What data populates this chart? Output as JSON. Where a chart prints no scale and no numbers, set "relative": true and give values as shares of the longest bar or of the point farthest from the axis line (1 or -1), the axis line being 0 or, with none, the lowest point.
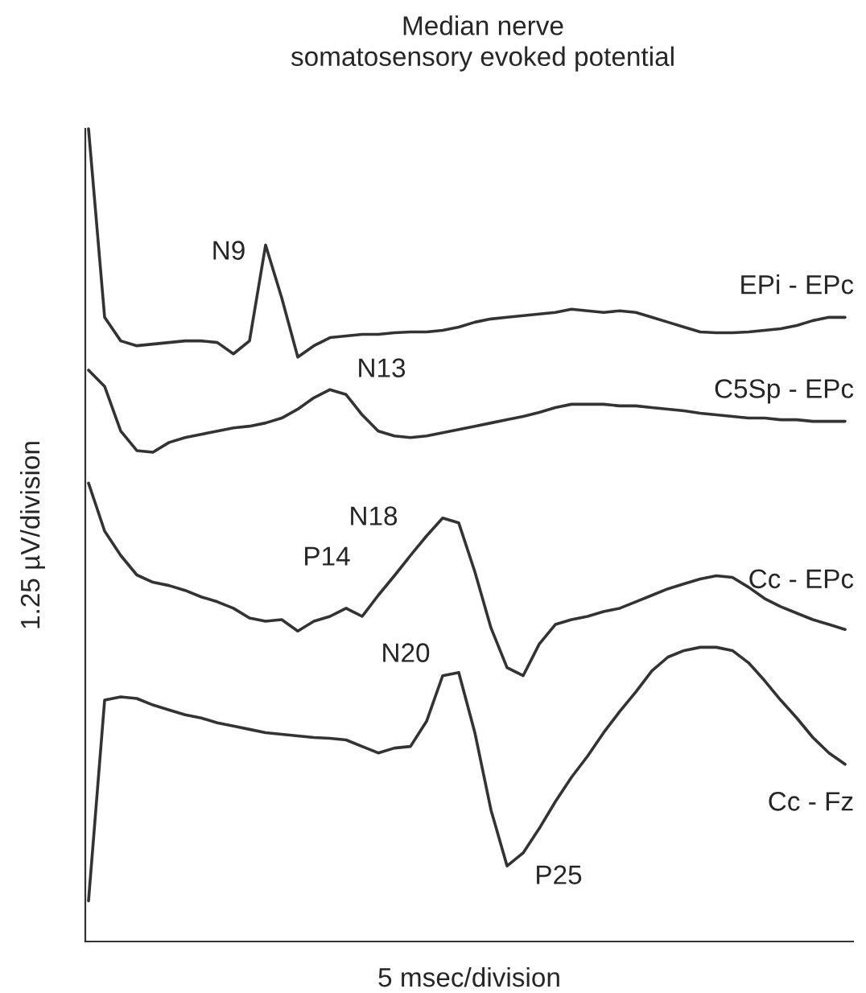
{
  "chart_data": {
    "type": "line",
    "title": "Median nerve\nsomatosensory evoked potential",
    "xlabel": "5 msec/division",
    "ylabel": "1.25 µV/division",
    "relative": true,
    "categories": [
      null,
      null,
      null,
      null,
      null,
      null,
      null,
      null,
      null,
      null,
      null,
      null,
      null,
      null,
      null,
      null,
      null,
      null,
      null,
      null,
      null,
      null,
      null,
      null,
      null,
      null,
      null,
      null,
      null,
      null,
      null,
      null,
      null,
      null,
      null,
      null,
      null,
      null,
      null,
      null,
      null,
      null,
      null,
      null,
      null,
      null,
      null,
      null
    ],
    "annotations": [
      "N9",
      "N13",
      "N18",
      "P14",
      "N20",
      "P25"
    ],
    "series": [
      {
        "name": "EPi - EPc",
        "color": "#333333",
        "values": [
          1.0,
          0.768,
          0.739,
          0.733,
          0.735,
          0.737,
          0.739,
          0.739,
          0.737,
          0.723,
          0.739,
          0.857,
          0.792,
          0.719,
          0.733,
          0.743,
          0.745,
          0.747,
          0.747,
          0.749,
          0.75,
          0.75,
          0.752,
          0.756,
          0.762,
          0.766,
          0.768,
          0.77,
          0.772,
          0.774,
          0.778,
          0.776,
          0.774,
          0.776,
          0.774,
          0.768,
          0.762,
          0.756,
          0.75,
          0.749,
          0.749,
          0.75,
          0.752,
          0.754,
          0.758,
          0.764,
          0.768,
          0.768
        ]
      },
      {
        "name": "C5Sp - EPc",
        "color": "#333333",
        "values": [
          0.703,
          0.683,
          0.628,
          0.604,
          0.602,
          0.614,
          0.62,
          0.624,
          0.628,
          0.632,
          0.634,
          0.638,
          0.644,
          0.655,
          0.669,
          0.679,
          0.673,
          0.648,
          0.628,
          0.622,
          0.62,
          0.622,
          0.626,
          0.63,
          0.634,
          0.638,
          0.642,
          0.646,
          0.651,
          0.657,
          0.661,
          0.661,
          0.661,
          0.659,
          0.659,
          0.657,
          0.655,
          0.653,
          0.65,
          0.648,
          0.646,
          0.644,
          0.644,
          0.642,
          0.642,
          0.64,
          0.64,
          0.64
        ]
      },
      {
        "name": "Cc - EPc",
        "color": "#333333",
        "values": [
          0.564,
          0.505,
          0.475,
          0.451,
          0.442,
          0.438,
          0.432,
          0.424,
          0.418,
          0.41,
          0.398,
          0.394,
          0.396,
          0.382,
          0.394,
          0.4,
          0.41,
          0.4,
          0.426,
          0.45,
          0.475,
          0.499,
          0.521,
          0.515,
          0.455,
          0.386,
          0.337,
          0.327,
          0.366,
          0.39,
          0.396,
          0.4,
          0.406,
          0.41,
          0.418,
          0.426,
          0.434,
          0.44,
          0.446,
          0.45,
          0.448,
          0.436,
          0.422,
          0.412,
          0.404,
          0.396,
          0.39,
          0.384
        ]
      },
      {
        "name": "Cc - Fz",
        "color": "#333333",
        "values": [
          0.05,
          0.297,
          0.301,
          0.299,
          0.291,
          0.285,
          0.279,
          0.275,
          0.269,
          0.265,
          0.261,
          0.257,
          0.255,
          0.253,
          0.251,
          0.25,
          0.248,
          0.24,
          0.232,
          0.238,
          0.24,
          0.271,
          0.327,
          0.331,
          0.257,
          0.162,
          0.093,
          0.109,
          0.139,
          0.172,
          0.202,
          0.228,
          0.257,
          0.283,
          0.307,
          0.333,
          0.35,
          0.358,
          0.362,
          0.362,
          0.358,
          0.343,
          0.321,
          0.297,
          0.275,
          0.251,
          0.232,
          0.218
        ]
      }
    ]
  }
}
